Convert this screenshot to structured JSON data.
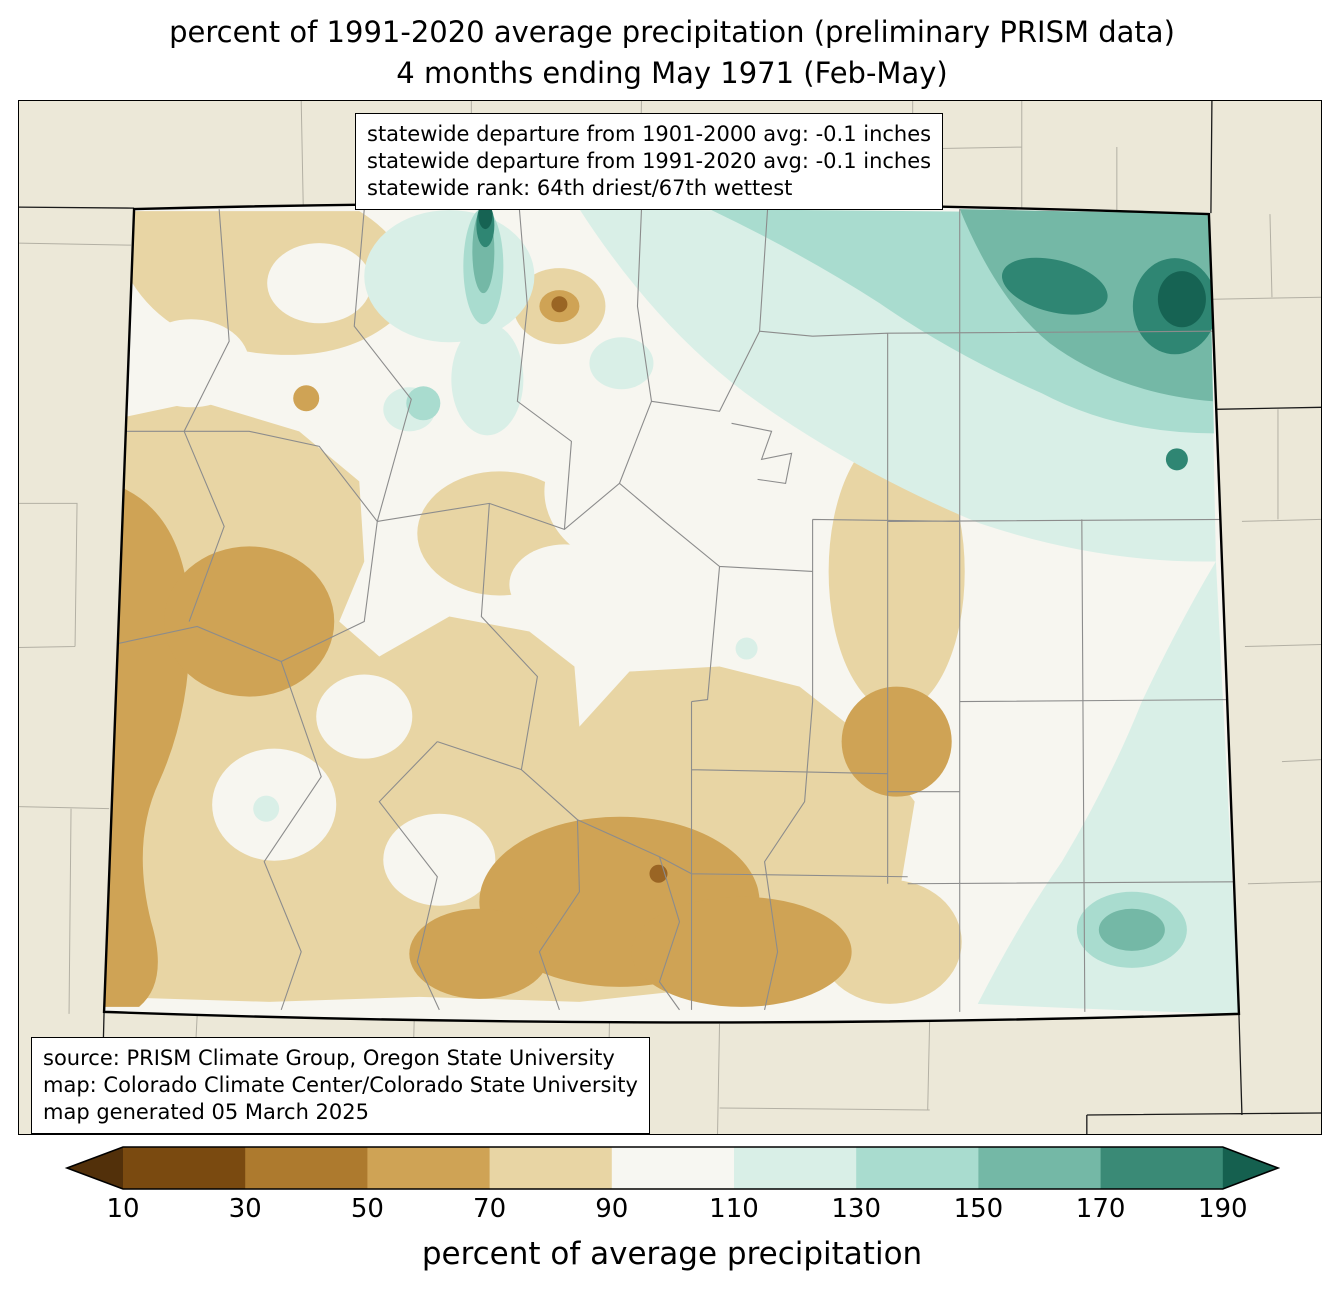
{
  "title": {
    "line1": "percent of 1991-2020 average precipitation (preliminary PRISM data)",
    "line2": "4 months ending May 1971 (Feb-May)"
  },
  "stats_box": {
    "line1": "statewide departure from 1901-2000 avg: -0.1 inches",
    "line2": "statewide departure from 1991-2020 avg: -0.1 inches",
    "line3": "statewide rank: 64th driest/67th wettest"
  },
  "source_box": {
    "line1": "source: PRISM Climate Group, Oregon State University",
    "line2": "map: Colorado Climate Center/Colorado State University",
    "line3": "map generated 05 March 2025"
  },
  "colorbar": {
    "label": "percent of average precipitation",
    "ticks": [
      10,
      30,
      50,
      70,
      90,
      110,
      130,
      150,
      170,
      190
    ],
    "segment_colors": [
      "#7a4a10",
      "#ad7a2e",
      "#cfa355",
      "#e8d5a4",
      "#f7f7f2",
      "#d9efe7",
      "#a9dccf",
      "#74b8a6",
      "#3a8a76"
    ],
    "arrow_left_color": "#52300a",
    "arrow_right_color": "#15604f"
  },
  "map": {
    "region": "Colorado",
    "units": "percent of average precipitation",
    "colors": {
      "background_outside_state": "#ece8d8",
      "state_base": "#f7f6f0",
      "tan_70_90": "#e8d5a4",
      "tan_50_70": "#cfa355",
      "brown_30_50": "#9a6524",
      "teal_110_130": "#d9efe7",
      "teal_130_150": "#a9dccf",
      "teal_150_170": "#74b8a6",
      "teal_170_190": "#2f8673",
      "teal_190_plus": "#166353",
      "county_line": "#8c8c8c",
      "neighbor_county_line": "#b3b0a4",
      "neighbor_state_line": "#1a1a1a",
      "state_border": "#000000"
    }
  }
}
